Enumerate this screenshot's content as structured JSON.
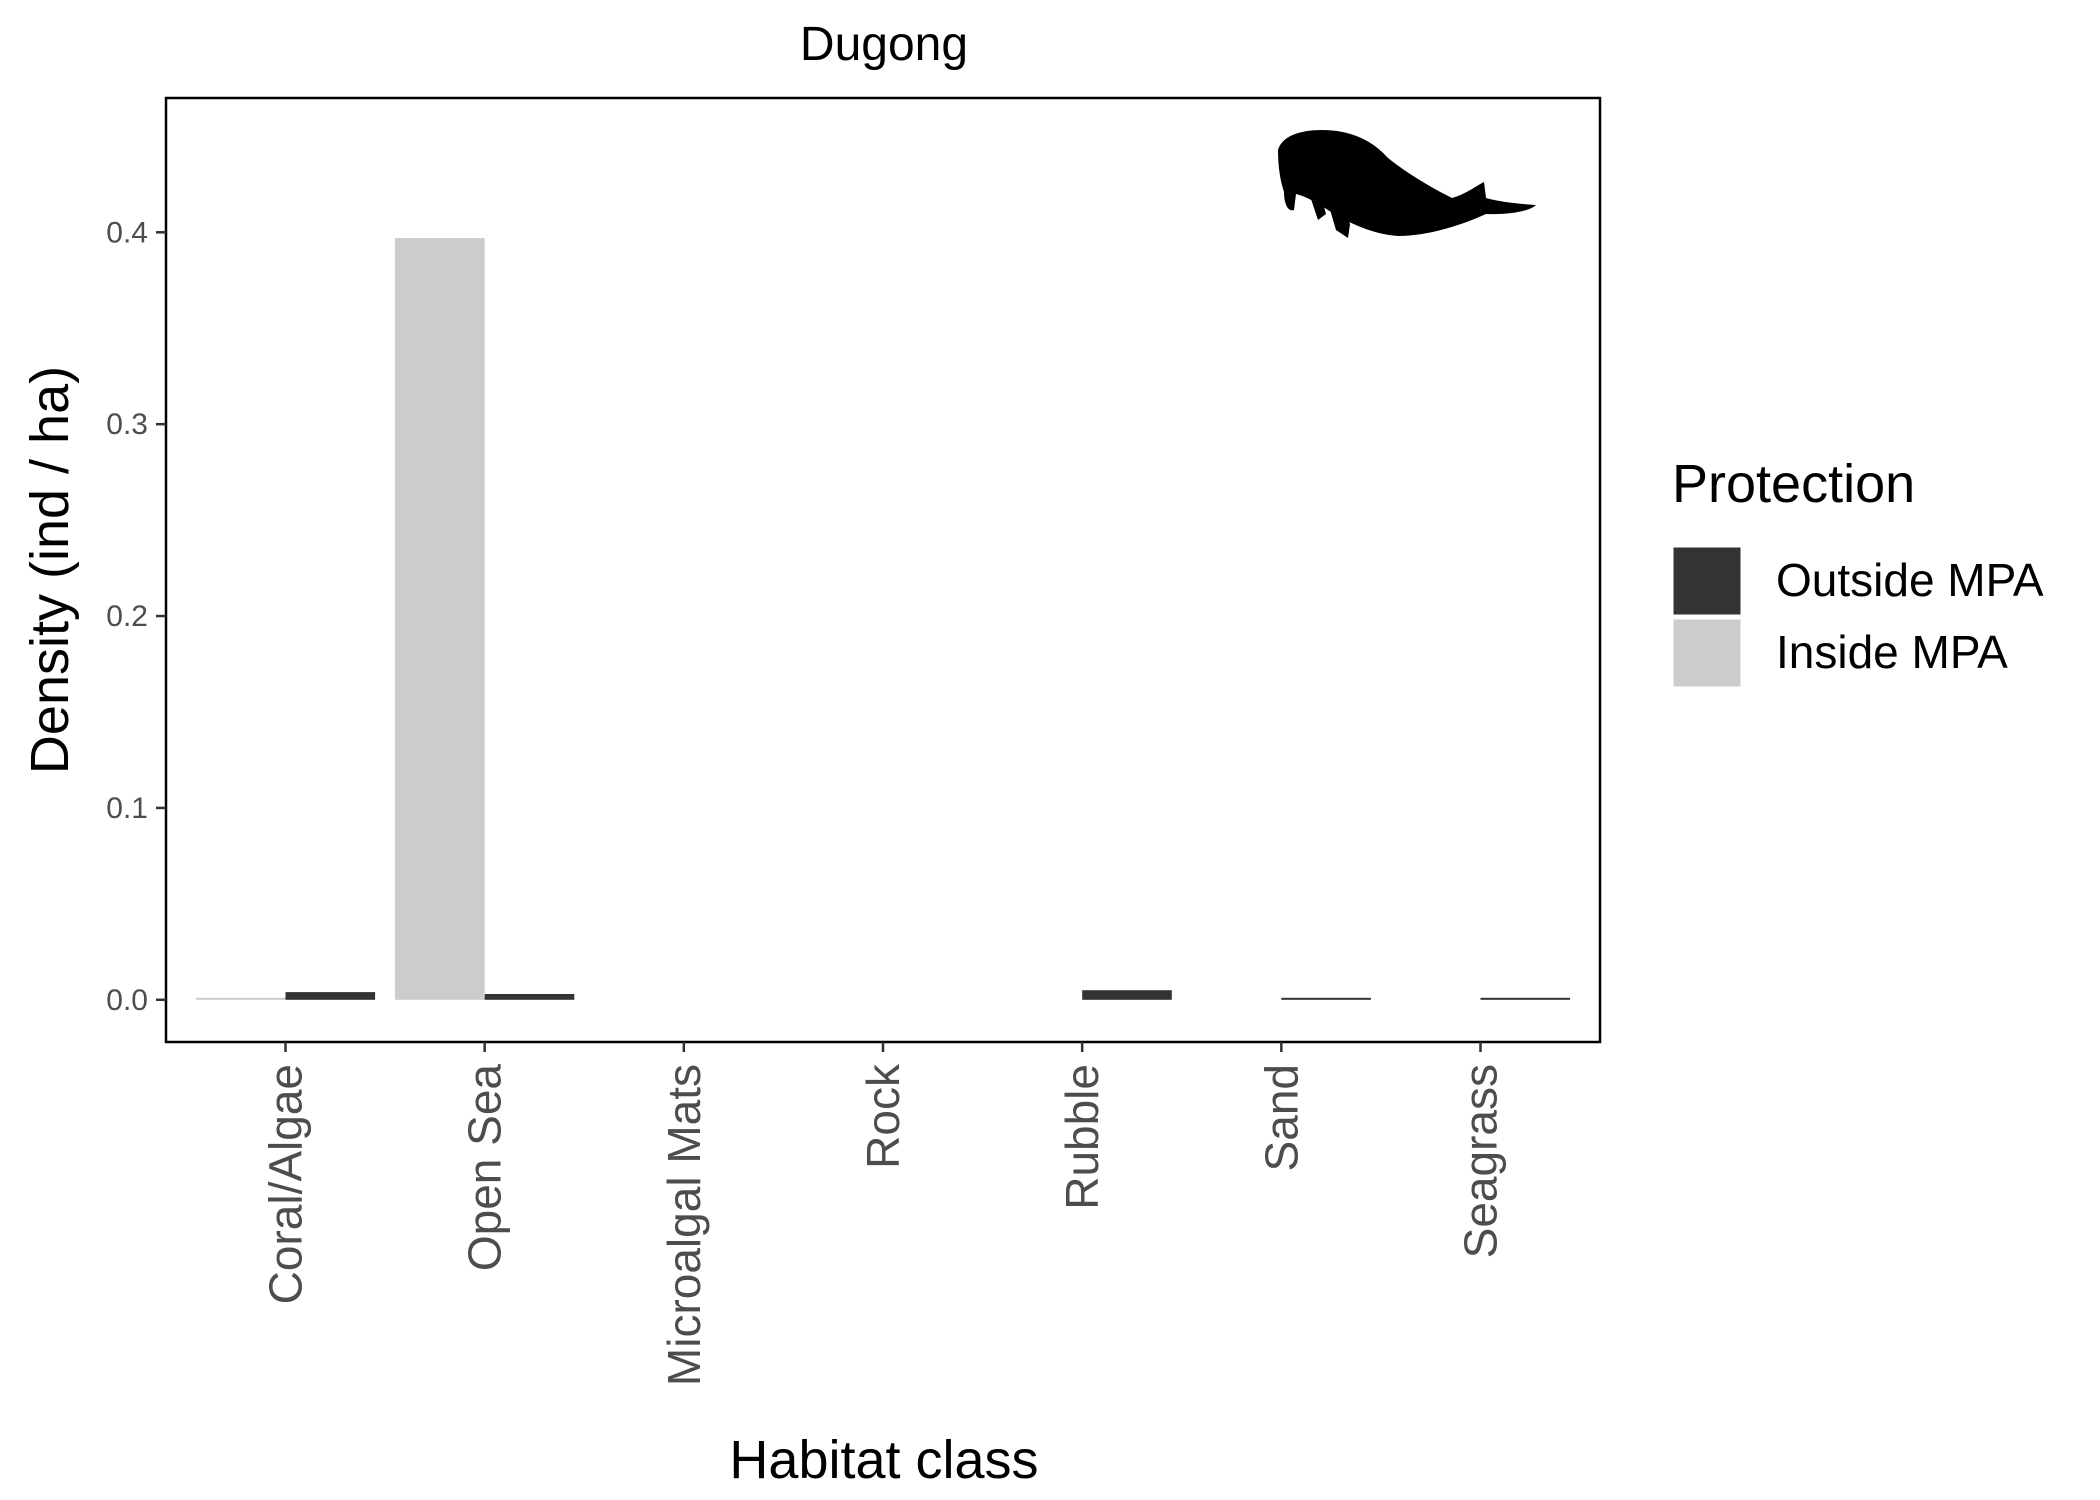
{
  "chart_data": {
    "type": "bar",
    "title": "Dugong",
    "xlabel": "Habitat class",
    "ylabel": "Density (ind / ha)",
    "categories": [
      "Coral/Algae",
      "Open Sea",
      "Microalgal Mats",
      "Rock",
      "Rubble",
      "Sand",
      "Seagrass"
    ],
    "series": [
      {
        "name": "Inside MPA",
        "color": "#cccccc",
        "values": [
          0.0005,
          0.397,
          null,
          null,
          null,
          null,
          null
        ]
      },
      {
        "name": "Outside MPA",
        "color": "#333333",
        "values": [
          0.004,
          0.003,
          null,
          null,
          0.005,
          0.001,
          0.001
        ]
      }
    ],
    "ylim": [
      -0.022,
      0.47
    ],
    "yticks": [
      0.0,
      0.1,
      0.2,
      0.3,
      0.4
    ],
    "ytick_labels": [
      "0.0",
      "0.1",
      "0.2",
      "0.3",
      "0.4"
    ],
    "grid": false,
    "legend": {
      "title": "Protection",
      "placement": "right",
      "entries": [
        {
          "label": "Outside MPA",
          "color": "#333333"
        },
        {
          "label": "Inside MPA",
          "color": "#cccccc"
        }
      ]
    },
    "icon": "dugong-silhouette-icon"
  }
}
